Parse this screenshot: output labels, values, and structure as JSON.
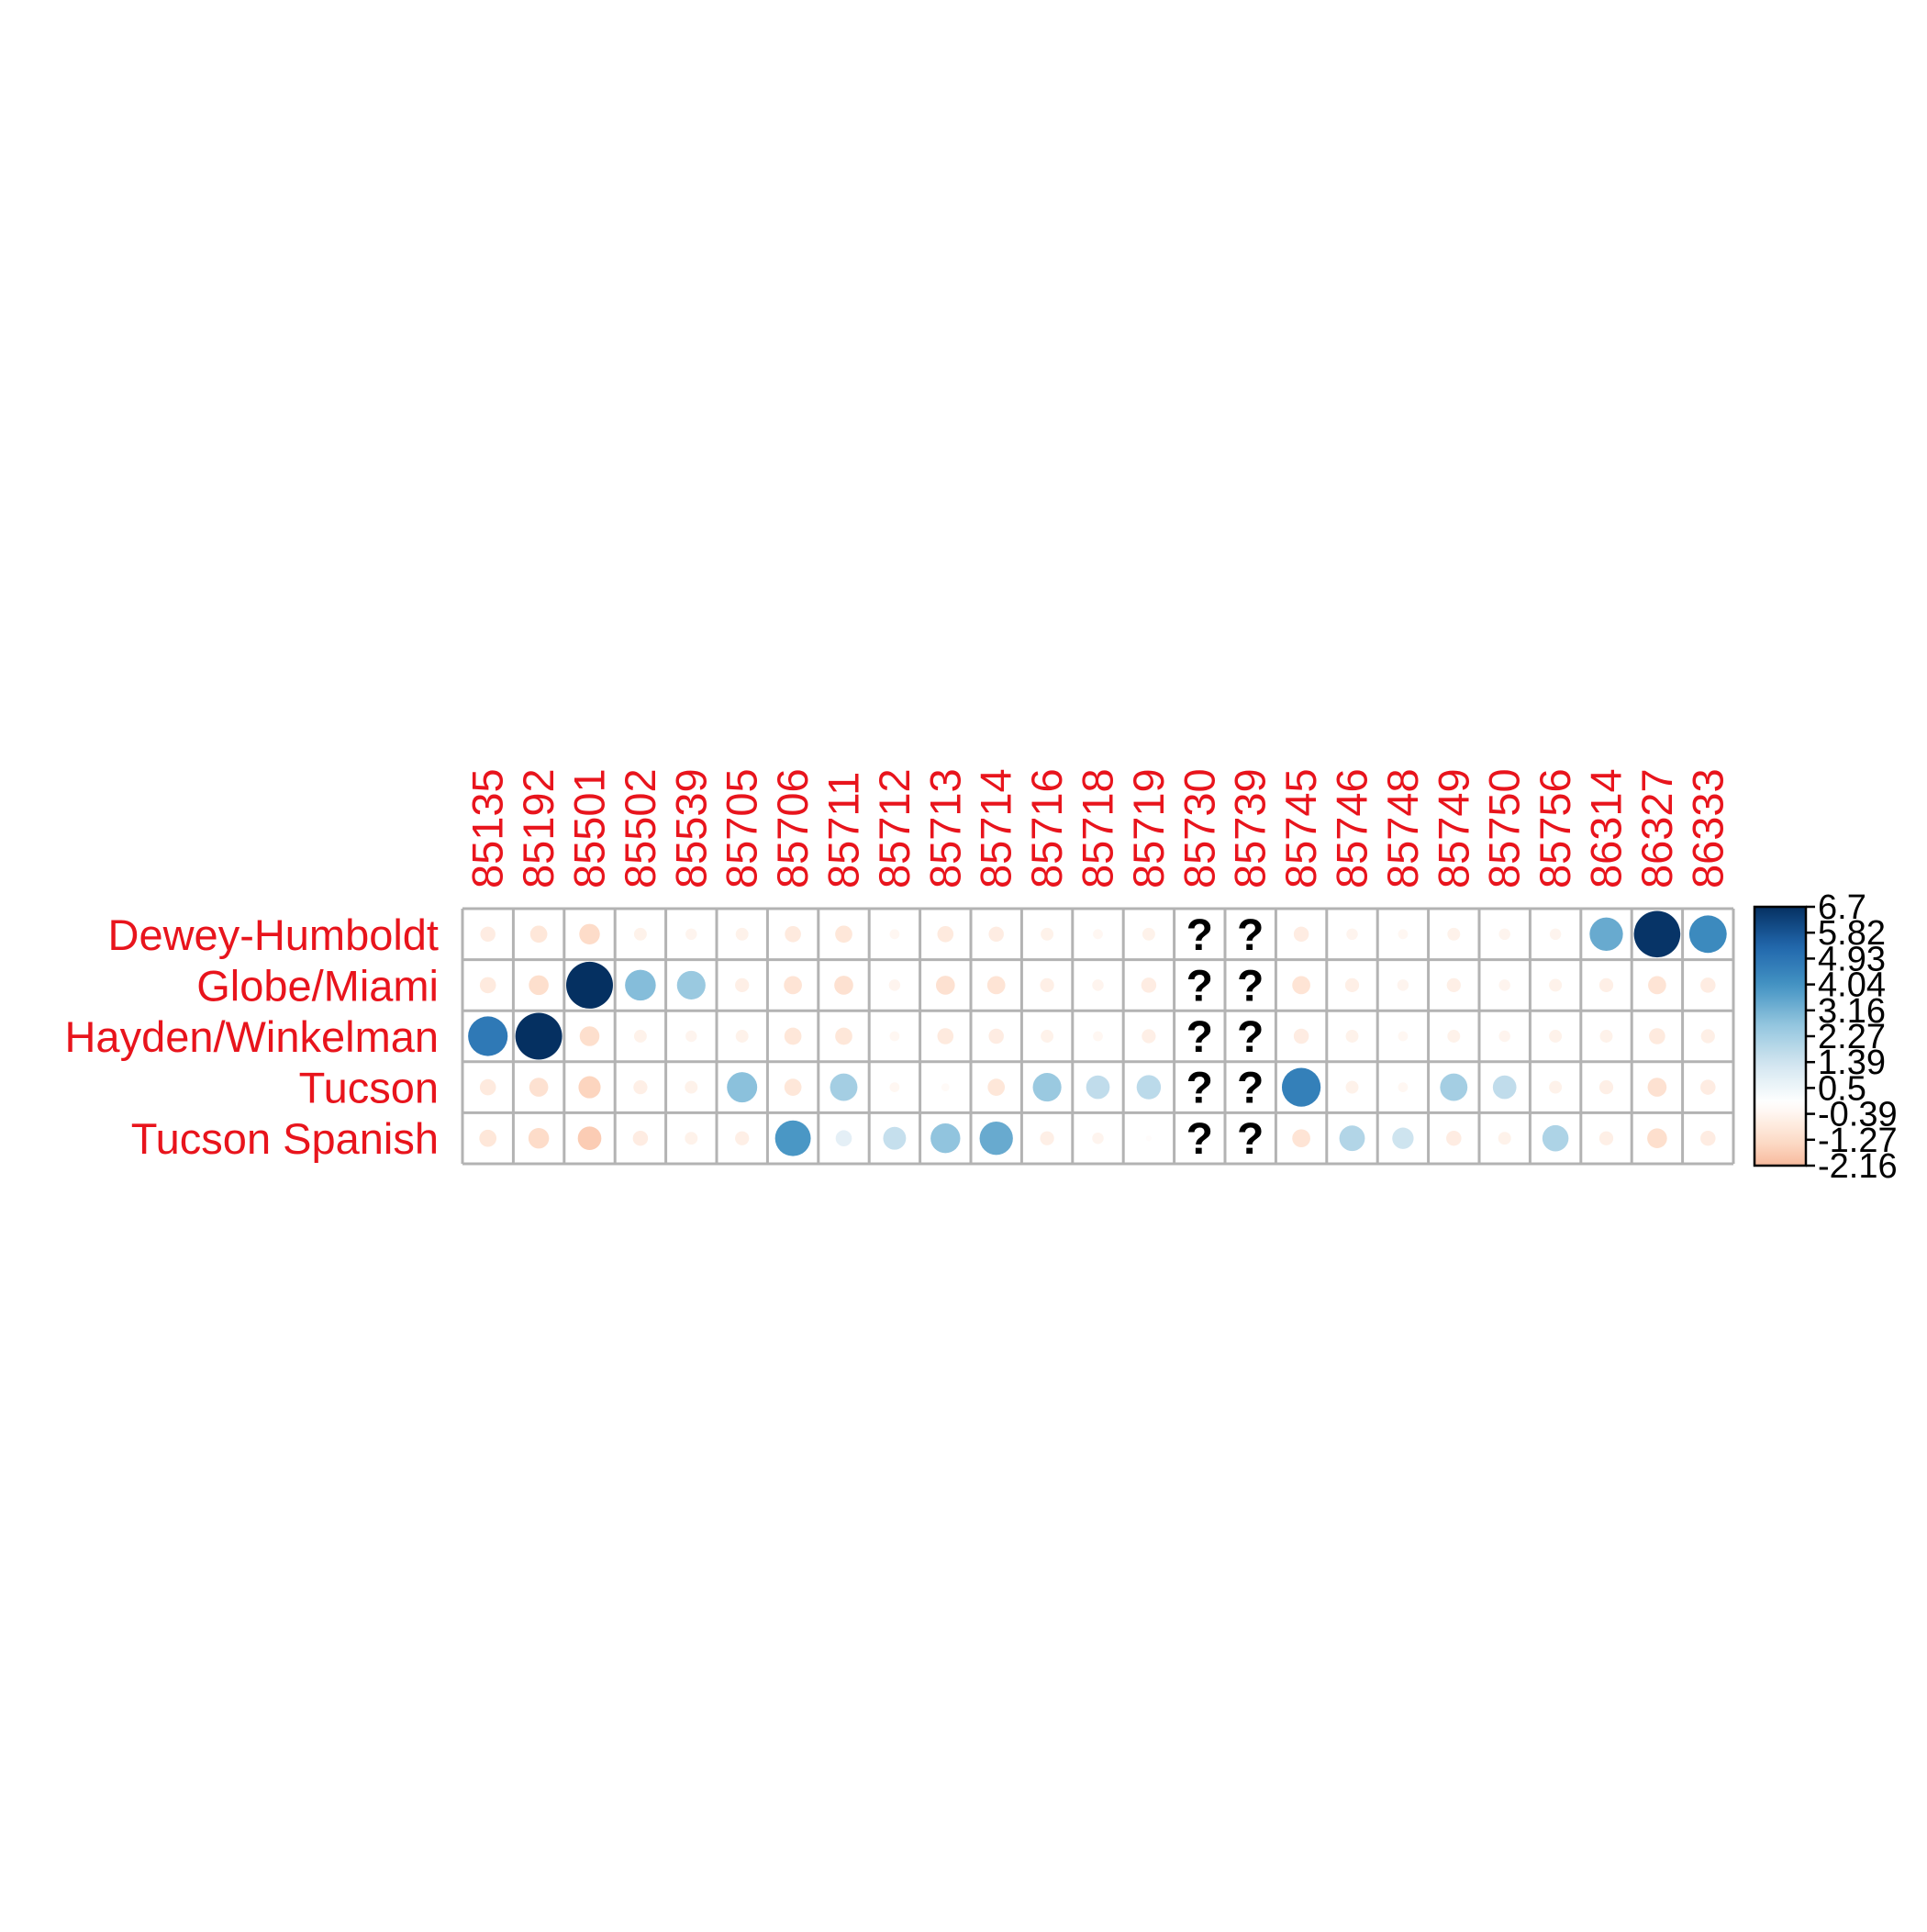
{
  "chart_data": {
    "type": "heatmap",
    "style": "corrplot-circle",
    "columns": [
      "85135",
      "85192",
      "85501",
      "85502",
      "85539",
      "85705",
      "85706",
      "85711",
      "85712",
      "85713",
      "85714",
      "85716",
      "85718",
      "85719",
      "85730",
      "85739",
      "85745",
      "85746",
      "85748",
      "85749",
      "85750",
      "85756",
      "86314",
      "86327",
      "86333"
    ],
    "rows": [
      "Dewey-Humboldt",
      "Globe/Miami",
      "Hayden/Winkelman",
      "Tucson",
      "Tucson Spanish"
    ],
    "values": [
      [
        -0.7,
        -0.9,
        -1.3,
        -0.5,
        -0.4,
        -0.5,
        -0.8,
        -0.9,
        -0.3,
        -0.8,
        -0.7,
        -0.5,
        -0.3,
        -0.5,
        null,
        null,
        -0.7,
        -0.4,
        -0.3,
        -0.5,
        -0.4,
        -0.4,
        3.4,
        6.6,
        4.3
      ],
      [
        -0.8,
        -1.2,
        6.7,
        2.9,
        2.5,
        -0.6,
        -1.0,
        -1.1,
        -0.4,
        -1.1,
        -1.0,
        -0.6,
        -0.4,
        -0.7,
        null,
        null,
        -1.0,
        -0.6,
        -0.4,
        -0.6,
        -0.4,
        -0.5,
        -0.6,
        -1.0,
        -0.7
      ],
      [
        4.8,
        6.7,
        -1.2,
        -0.5,
        -0.4,
        -0.5,
        -0.9,
        -0.9,
        -0.3,
        -0.8,
        -0.7,
        -0.5,
        -0.3,
        -0.6,
        null,
        null,
        -0.7,
        -0.5,
        -0.3,
        -0.5,
        -0.4,
        -0.5,
        -0.5,
        -0.8,
        -0.6
      ],
      [
        -0.8,
        -1.1,
        -1.5,
        -0.6,
        -0.5,
        2.8,
        -0.9,
        2.3,
        -0.3,
        -0.2,
        -0.9,
        2.5,
        1.7,
        1.8,
        null,
        null,
        4.6,
        -0.5,
        -0.3,
        2.3,
        1.7,
        -0.5,
        -0.6,
        -1.1,
        -0.7
      ],
      [
        -0.9,
        -1.3,
        -1.7,
        -0.7,
        -0.5,
        -0.6,
        3.9,
        0.8,
        1.6,
        2.7,
        3.4,
        -0.6,
        -0.4,
        -0.1,
        null,
        null,
        -1.0,
        2.0,
        1.4,
        -0.7,
        -0.5,
        2.1,
        -0.6,
        -1.2,
        -0.7
      ]
    ],
    "missing_symbol": "?",
    "colorbar": {
      "min": -2.16,
      "max": 6.7,
      "ticks": [
        "6.7",
        "5.82",
        "4.93",
        "4.04",
        "3.16",
        "2.27",
        "1.39",
        "0.5",
        "-0.39",
        "-1.27",
        "-2.16"
      ],
      "palette": [
        "#67001f",
        "#b2182b",
        "#d6604d",
        "#f4a582",
        "#fddbc7",
        "#ffffff",
        "#d1e5f0",
        "#92c5de",
        "#4393c3",
        "#2166ac",
        "#053061"
      ]
    },
    "label_color": "#e8141c",
    "grid": true,
    "legend_position": "right"
  }
}
